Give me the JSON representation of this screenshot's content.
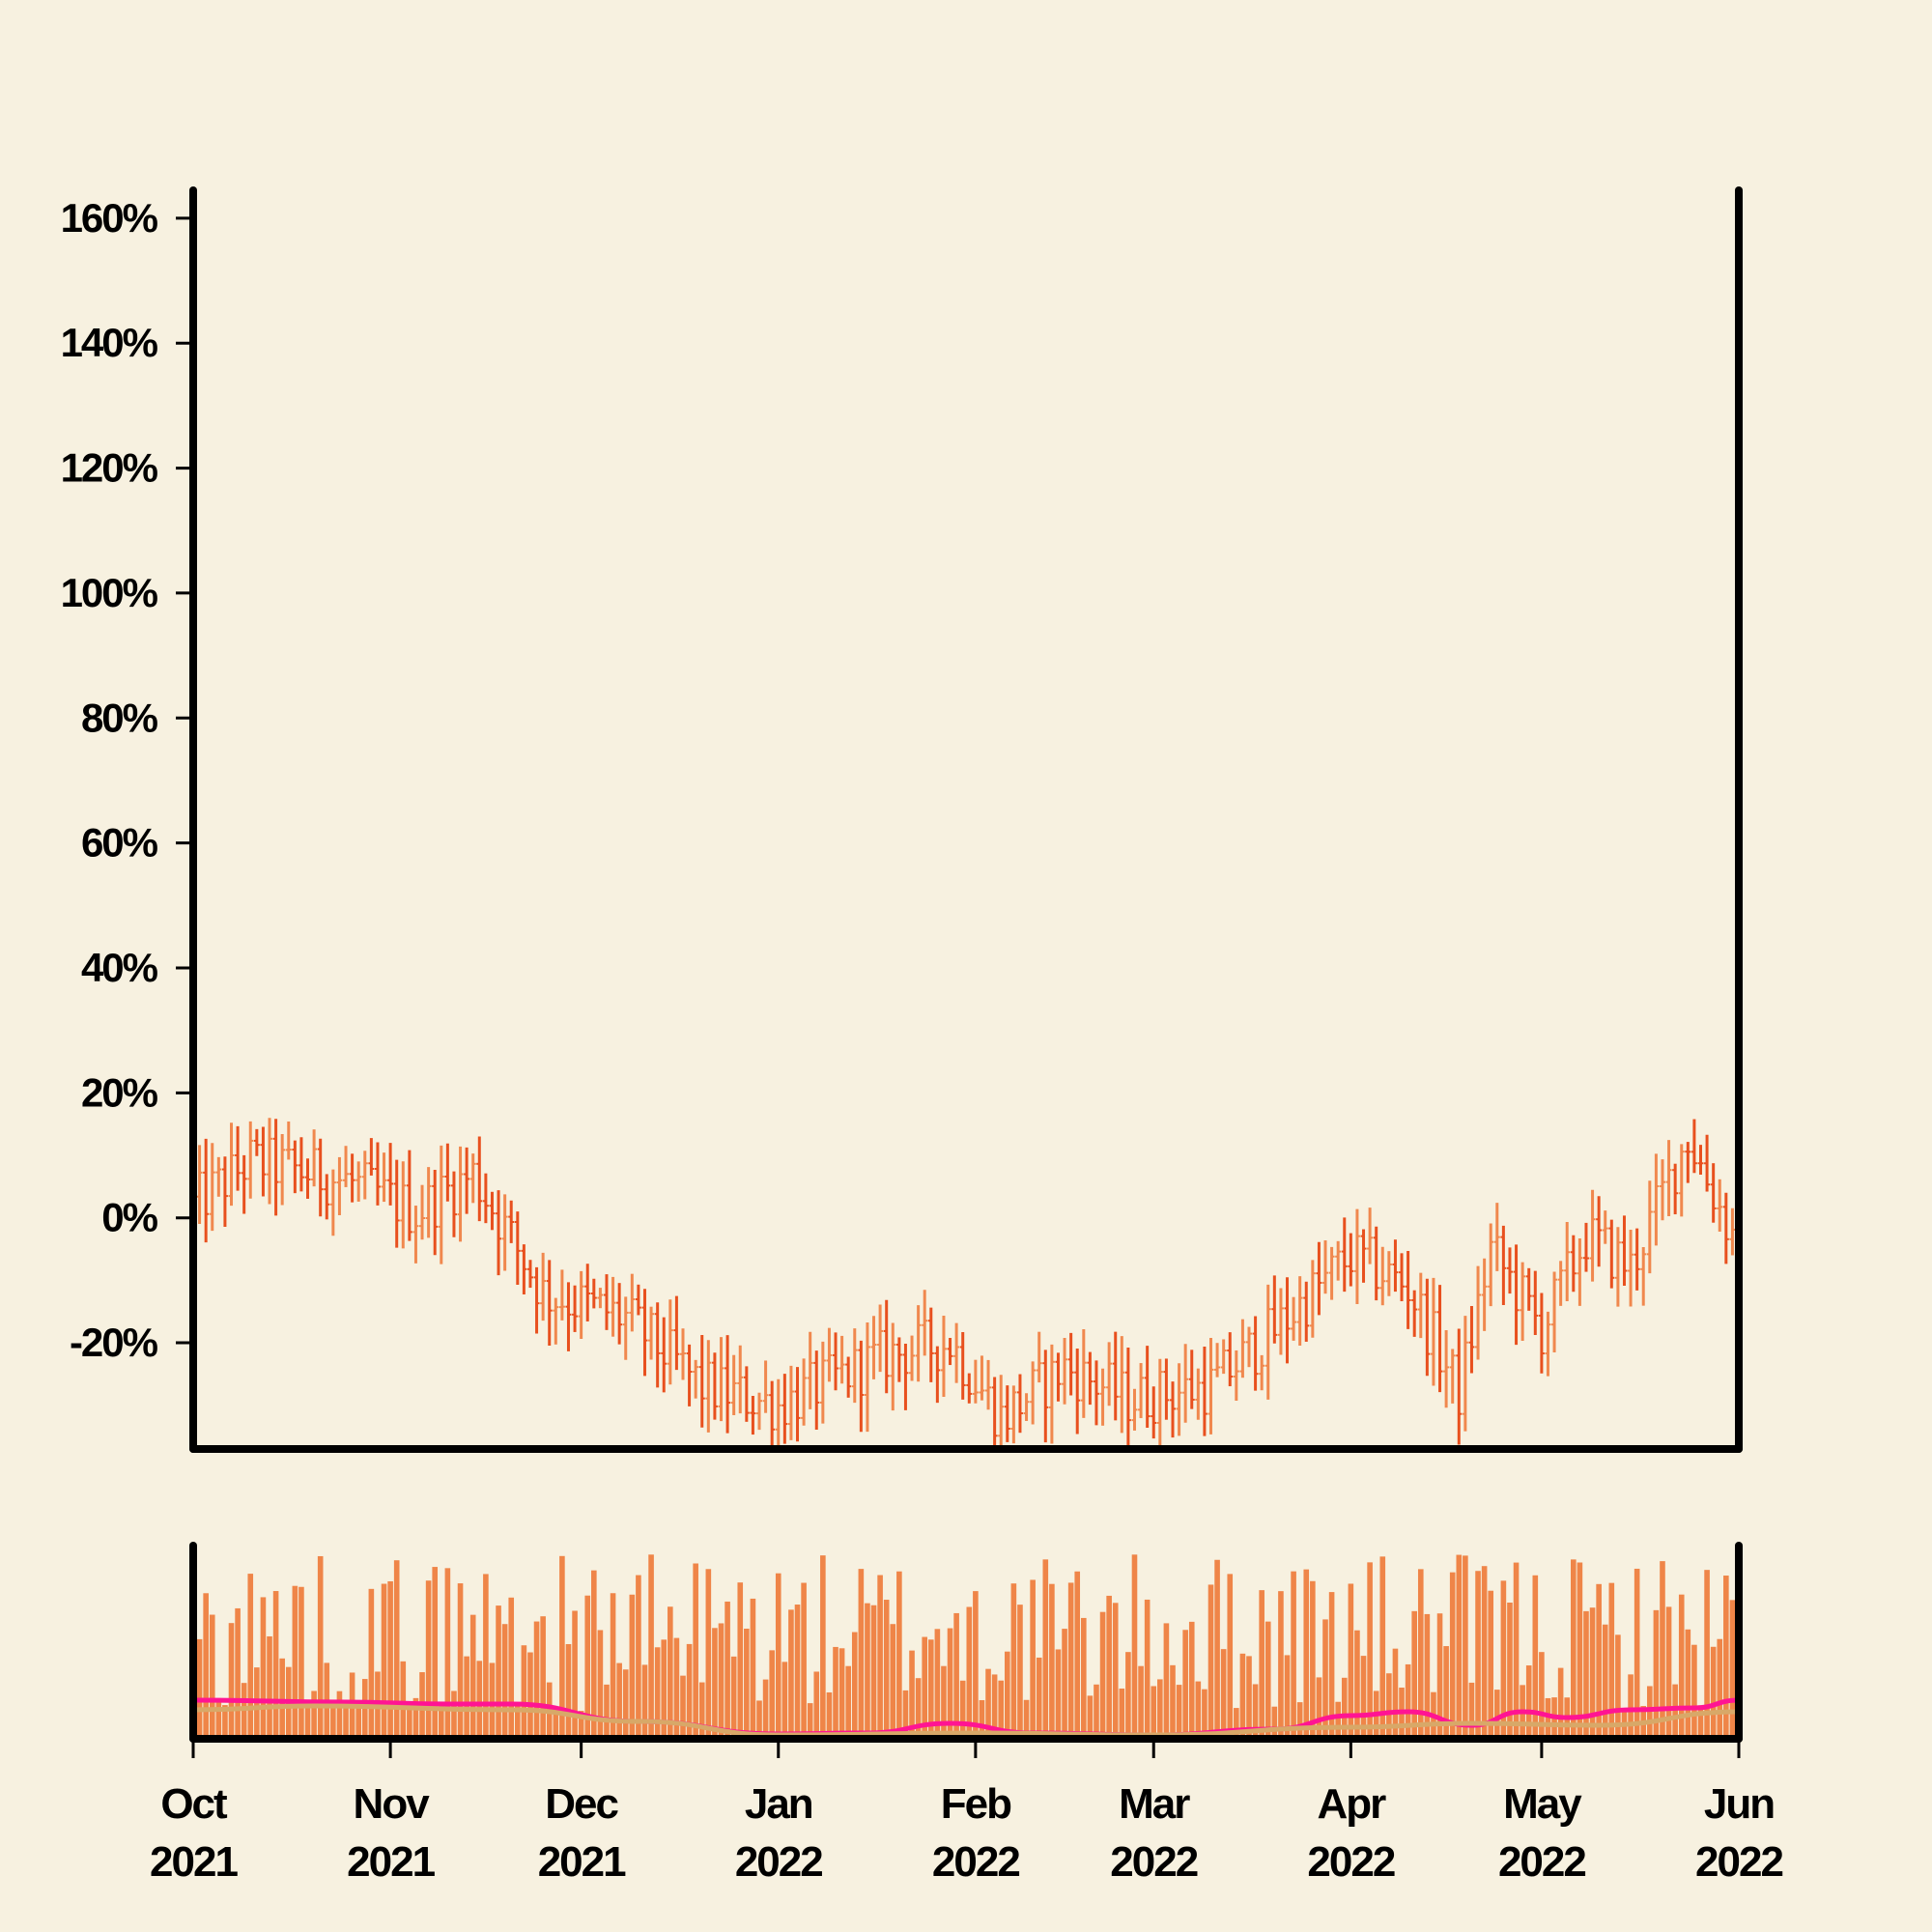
{
  "chart_data": [
    {
      "type": "ohlc",
      "panel": "price",
      "title": "",
      "xlabel": "",
      "ylabel": "",
      "y_unit": "percent",
      "ylim": [
        -37,
        164
      ],
      "xlim": [
        "2021-10-01",
        "2022-06-01"
      ],
      "y_ticks": [
        -20,
        0,
        20,
        40,
        60,
        80,
        100,
        120,
        140,
        160
      ],
      "y_tick_labels": [
        "-20%",
        "0%",
        "20%",
        "40%",
        "60%",
        "80%",
        "100%",
        "120%",
        "140%",
        "160%"
      ],
      "x_ticks": [
        "2021-10-01",
        "2021-11-01",
        "2021-12-01",
        "2022-01-01",
        "2022-02-01",
        "2022-03-01",
        "2022-04-01",
        "2022-05-01",
        "2022-06-01"
      ],
      "x_tick_labels": [
        {
          "month": "Oct",
          "year": "2021"
        },
        {
          "month": "Nov",
          "year": "2021"
        },
        {
          "month": "Dec",
          "year": "2021"
        },
        {
          "month": "Jan",
          "year": "2022"
        },
        {
          "month": "Feb",
          "year": "2022"
        },
        {
          "month": "Mar",
          "year": "2022"
        },
        {
          "month": "Apr",
          "year": "2022"
        },
        {
          "month": "May",
          "year": "2022"
        },
        {
          "month": "Jun",
          "year": "2022"
        }
      ],
      "trend_anchors": [
        {
          "date": "2021-10-01",
          "close": 2
        },
        {
          "date": "2021-10-10",
          "close": 9
        },
        {
          "date": "2021-10-25",
          "close": 6
        },
        {
          "date": "2021-11-05",
          "close": 1
        },
        {
          "date": "2021-11-14",
          "close": 7
        },
        {
          "date": "2021-11-25",
          "close": -12
        },
        {
          "date": "2021-12-08",
          "close": -16
        },
        {
          "date": "2021-12-20",
          "close": -27
        },
        {
          "date": "2022-01-01",
          "close": -30
        },
        {
          "date": "2022-01-18",
          "close": -22
        },
        {
          "date": "2022-01-28",
          "close": -20
        },
        {
          "date": "2022-02-05",
          "close": -32
        },
        {
          "date": "2022-02-15",
          "close": -24
        },
        {
          "date": "2022-02-25",
          "close": -29
        },
        {
          "date": "2022-03-10",
          "close": -27
        },
        {
          "date": "2022-03-20",
          "close": -18
        },
        {
          "date": "2022-04-01",
          "close": -6
        },
        {
          "date": "2022-04-10",
          "close": -11
        },
        {
          "date": "2022-04-18",
          "close": -28
        },
        {
          "date": "2022-04-23",
          "close": -5
        },
        {
          "date": "2022-05-01",
          "close": -18
        },
        {
          "date": "2022-05-08",
          "close": -3
        },
        {
          "date": "2022-05-15",
          "close": -8
        },
        {
          "date": "2022-05-24",
          "close": 13
        },
        {
          "date": "2022-06-01",
          "close": -5
        }
      ],
      "up_color": "#f0884e",
      "down_color": "#e8501e"
    },
    {
      "type": "bar",
      "panel": "volume",
      "title": "",
      "xlabel": "",
      "ylabel": "",
      "y_ticks_shown": false,
      "volume_range": [
        0,
        1
      ],
      "bar_color": "#ef8548",
      "overlays": [
        {
          "type": "line",
          "color": "#ff1493",
          "points": [
            {
              "date": "2021-10-01",
              "value": 0.18
            },
            {
              "date": "2021-10-25",
              "value": 0.17
            },
            {
              "date": "2021-11-10",
              "value": 0.16
            },
            {
              "date": "2021-11-20",
              "value": 0.16
            },
            {
              "date": "2021-12-10",
              "value": 0.07
            },
            {
              "date": "2022-01-01",
              "value": 0.005
            },
            {
              "date": "2022-01-15",
              "value": 0.01
            },
            {
              "date": "2022-01-28",
              "value": 0.06
            },
            {
              "date": "2022-02-10",
              "value": 0.01
            },
            {
              "date": "2022-03-01",
              "value": 0.0
            },
            {
              "date": "2022-03-20",
              "value": 0.03
            },
            {
              "date": "2022-04-01",
              "value": 0.1
            },
            {
              "date": "2022-04-10",
              "value": 0.12
            },
            {
              "date": "2022-04-20",
              "value": 0.05
            },
            {
              "date": "2022-04-28",
              "value": 0.12
            },
            {
              "date": "2022-05-05",
              "value": 0.09
            },
            {
              "date": "2022-05-15",
              "value": 0.13
            },
            {
              "date": "2022-05-25",
              "value": 0.14
            },
            {
              "date": "2022-06-01",
              "value": 0.18
            }
          ]
        },
        {
          "type": "line",
          "color": "#d8a868",
          "points": [
            {
              "date": "2021-10-01",
              "value": 0.13
            },
            {
              "date": "2021-10-20",
              "value": 0.15
            },
            {
              "date": "2021-11-20",
              "value": 0.13
            },
            {
              "date": "2021-12-10",
              "value": 0.07
            },
            {
              "date": "2022-01-01",
              "value": 0.0
            },
            {
              "date": "2022-02-01",
              "value": 0.01
            },
            {
              "date": "2022-03-01",
              "value": 0.0
            },
            {
              "date": "2022-04-01",
              "value": 0.04
            },
            {
              "date": "2022-04-20",
              "value": 0.06
            },
            {
              "date": "2022-05-10",
              "value": 0.05
            },
            {
              "date": "2022-06-01",
              "value": 0.12
            }
          ]
        }
      ]
    }
  ]
}
